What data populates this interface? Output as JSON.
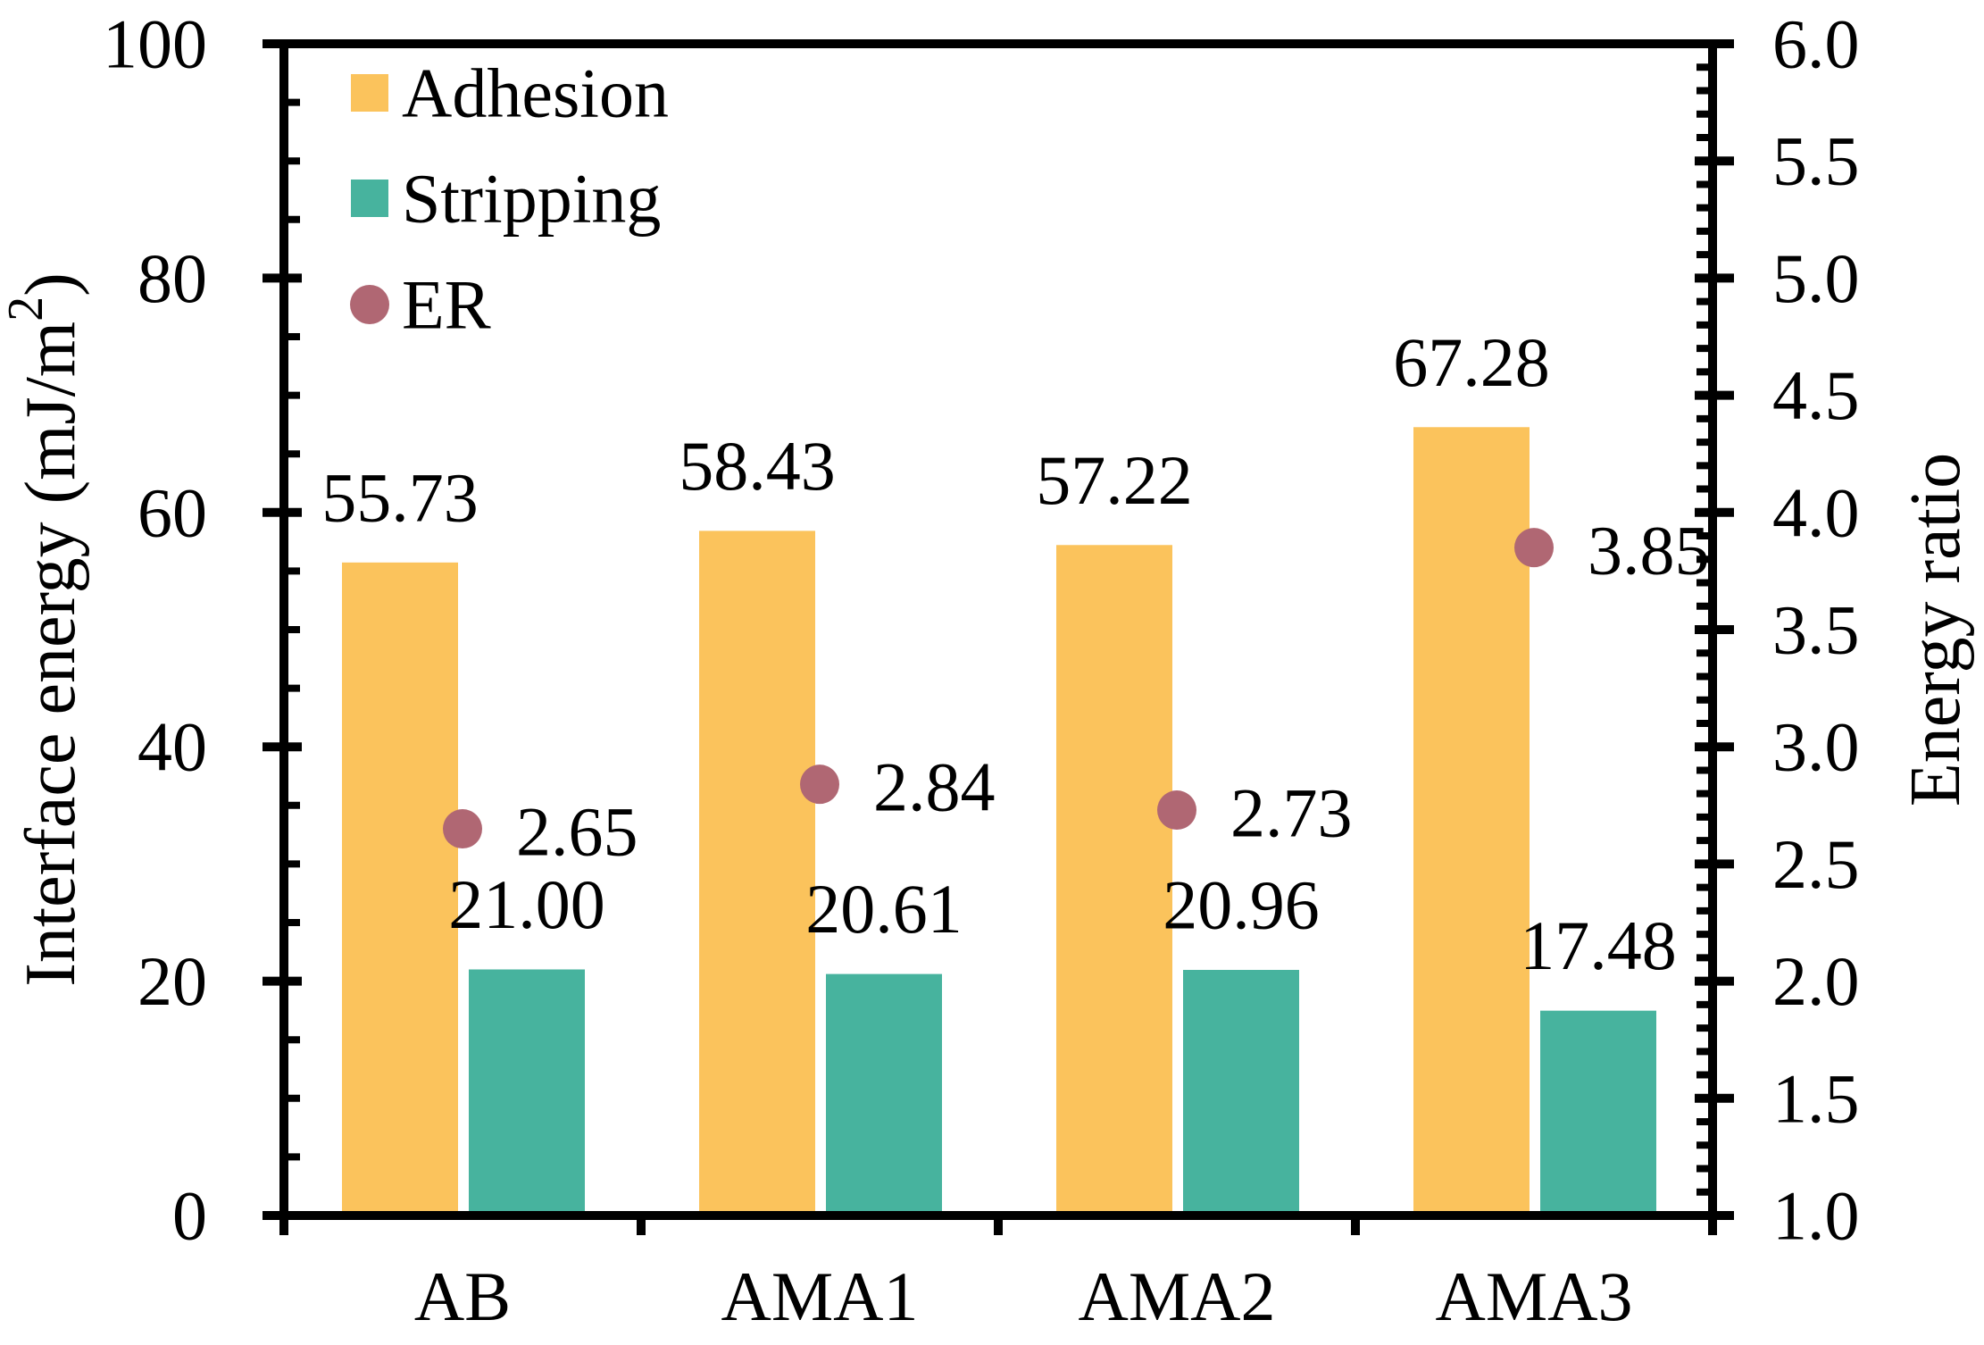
{
  "chart_data": {
    "type": "bar",
    "subtype": "grouped-bars-with-scatter-overlay",
    "categories": [
      "AB",
      "AMA1",
      "AMA2",
      "AMA3"
    ],
    "series": [
      {
        "name": "Adhesion",
        "type": "bar",
        "axis": "left",
        "color": "#FBC35C",
        "values": [
          55.73,
          58.43,
          57.22,
          67.28
        ]
      },
      {
        "name": "Stripping",
        "type": "bar",
        "axis": "left",
        "color": "#47B39E",
        "values": [
          21.0,
          20.61,
          20.96,
          17.48
        ]
      },
      {
        "name": "ER",
        "type": "scatter",
        "axis": "right",
        "color": "#B06773",
        "values": [
          2.65,
          2.84,
          2.73,
          3.85
        ]
      }
    ],
    "value_labels": {
      "Adhesion": [
        "55.73",
        "58.43",
        "57.22",
        "67.28"
      ],
      "Stripping": [
        "21.00",
        "20.61",
        "20.96",
        "17.48"
      ],
      "ER": [
        "2.65",
        "2.84",
        "2.73",
        "3.85"
      ]
    },
    "left_axis": {
      "label": "Interface energy (mJ/m²)",
      "min": 0,
      "max": 100,
      "major_step": 20,
      "minor_step": 5,
      "tick_labels": [
        "0",
        "20",
        "40",
        "60",
        "80",
        "100"
      ]
    },
    "right_axis": {
      "label": "Energy ratio",
      "min": 1.0,
      "max": 6.0,
      "major_step": 0.5,
      "minor_step": 0.1,
      "tick_labels": [
        "1.0",
        "1.5",
        "2.0",
        "2.5",
        "3.0",
        "3.5",
        "4.0",
        "4.5",
        "5.0",
        "5.5",
        "6.0"
      ]
    },
    "legend": {
      "position": "top-left-inside",
      "entries": [
        {
          "label": "Adhesion",
          "marker": "square",
          "color": "#FBC35C"
        },
        {
          "label": "Stripping",
          "marker": "square",
          "color": "#47B39E"
        },
        {
          "label": "ER",
          "marker": "circle",
          "color": "#B06773"
        }
      ]
    },
    "grid": false,
    "frame": true,
    "colors": {
      "axis": "#000000",
      "text": "#000000",
      "background": "#FFFFFF"
    }
  }
}
